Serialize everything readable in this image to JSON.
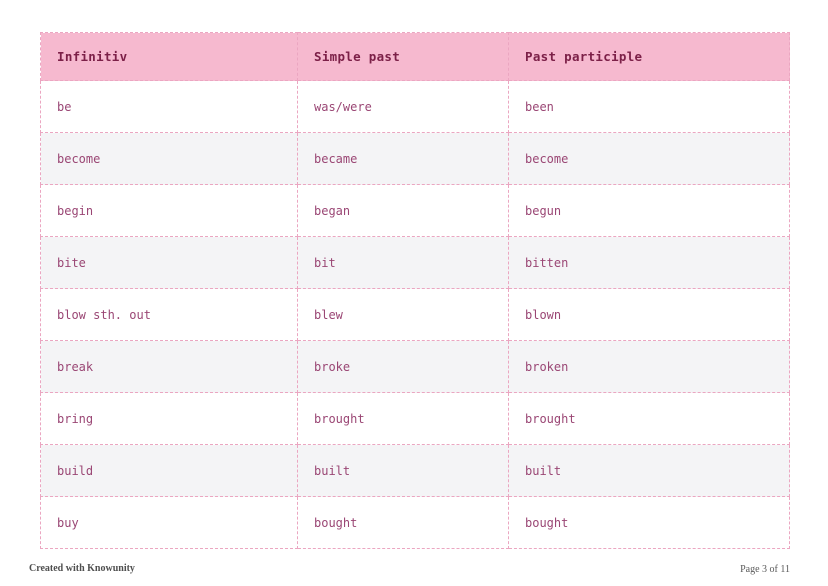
{
  "document": {
    "footer_left": "Created with Knowunity",
    "footer_right": "Page 3 of 11",
    "page_number": 3,
    "page_total": 11
  },
  "table": {
    "headers": [
      "Infinitiv",
      "Simple past",
      "Past participle"
    ],
    "rows": [
      [
        "be",
        "was/were",
        "been"
      ],
      [
        "become",
        "became",
        "become"
      ],
      [
        "begin",
        "began",
        "begun"
      ],
      [
        "bite",
        "bit",
        "bitten"
      ],
      [
        "blow sth. out",
        "blew",
        "blown"
      ],
      [
        "break",
        "broke",
        "broken"
      ],
      [
        "bring",
        "brought",
        "brought"
      ],
      [
        "build",
        "built",
        "built"
      ],
      [
        "buy",
        "bought",
        "bought"
      ]
    ]
  },
  "colors": {
    "header_background": "#f6b9cf",
    "header_text": "#7c2048",
    "body_text": "#9a4674",
    "cell_border": "#eba6c1",
    "alt_row_background": "#f4f4f6",
    "row_background": "#ffffff",
    "footer_text": "#4f4f4f"
  }
}
